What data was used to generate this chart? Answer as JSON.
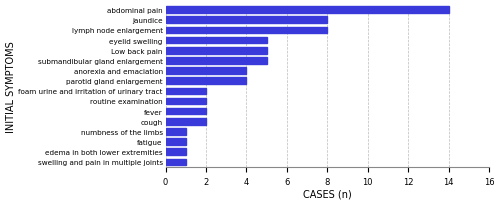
{
  "categories": [
    "abdominal pain",
    "jaundice",
    "lymph node enlargement",
    "eyelid swelling",
    "Low back pain",
    "submandibular gland enlargement",
    "anorexia and emaciation",
    "parotid gland enlargement",
    "foam urine and irritation of urinary tract",
    "routine examination",
    "fever",
    "cough",
    "numbness of the limbs",
    "fatigue",
    "edema in both lower extremities",
    "swelling and pain in multiple joints"
  ],
  "values": [
    14,
    8,
    8,
    5,
    5,
    5,
    4,
    4,
    2,
    2,
    2,
    2,
    1,
    1,
    1,
    1
  ],
  "bar_color": "#3a3adb",
  "xlabel": "CASES (n)",
  "ylabel": "INITIAL SYMPTOMS",
  "xlim": [
    0,
    16
  ],
  "xticks": [
    0,
    2,
    4,
    6,
    8,
    10,
    12,
    14,
    16
  ],
  "bar_height": 0.65,
  "label_fontsize": 5.2,
  "axis_label_fontsize": 7.0,
  "tick_fontsize": 6.0,
  "background_color": "#ffffff",
  "grid_color": "#bbbbbb"
}
